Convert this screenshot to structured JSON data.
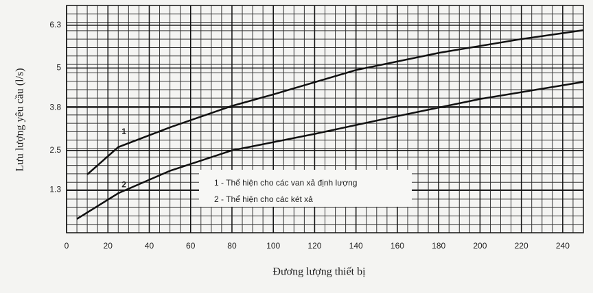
{
  "chart_data": {
    "type": "line",
    "y_label": "Lưu lượng yêu cầu (l/s)",
    "x_label": "Đương lượng thiết bị",
    "xlim": [
      0,
      250
    ],
    "xticks": [
      0,
      20,
      40,
      60,
      80,
      100,
      120,
      140,
      160,
      180,
      200,
      220,
      240
    ],
    "ylim": [
      0,
      6.9
    ],
    "yticks": [
      1.3,
      2.5,
      3.8,
      5.0,
      6.3
    ],
    "grid": true,
    "series": [
      {
        "name": "1 - Thể hiện cho các van xả định lượng",
        "curve_label": "1",
        "color": "#111111",
        "x": [
          10,
          25,
          50,
          80,
          100,
          140,
          180,
          220,
          250
        ],
        "values": [
          1.77,
          2.6,
          3.2,
          3.85,
          4.2,
          4.94,
          5.46,
          5.88,
          6.15
        ]
      },
      {
        "name": "2 - Thể hiện cho các két xả",
        "curve_label": "2",
        "color": "#111111",
        "x": [
          5,
          25,
          50,
          80,
          120,
          160,
          200,
          250
        ],
        "values": [
          0.42,
          1.2,
          1.88,
          2.5,
          3.0,
          3.54,
          4.06,
          4.58
        ]
      }
    ]
  }
}
